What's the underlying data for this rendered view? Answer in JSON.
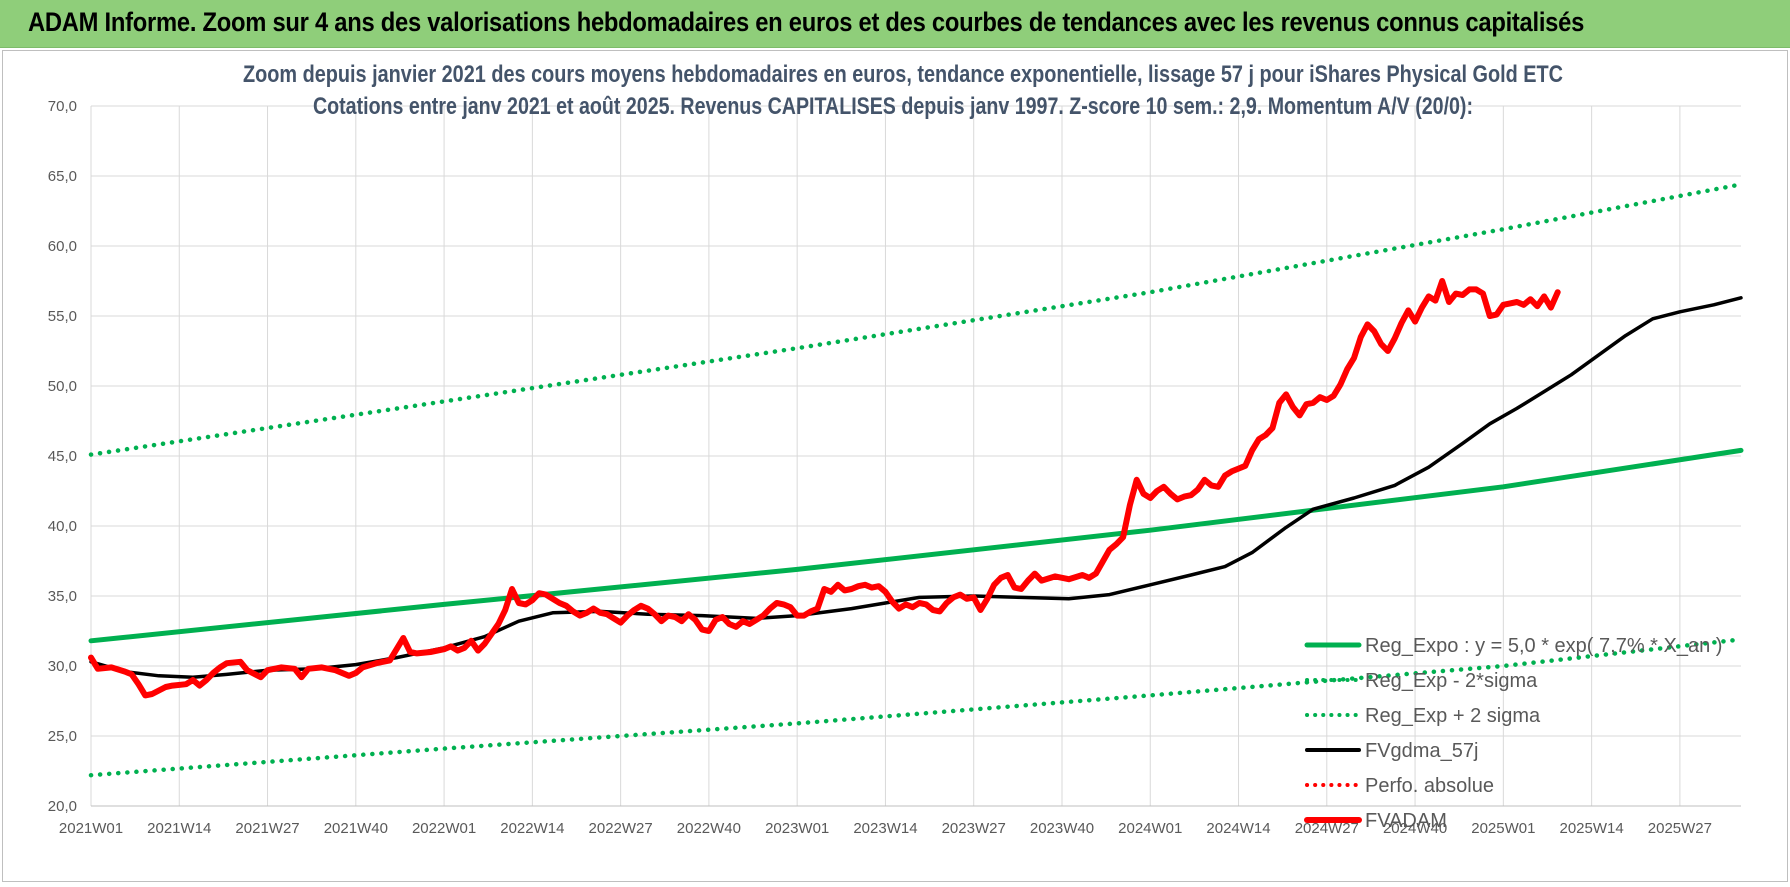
{
  "banner": {
    "title": "ADAM Informe. Zoom sur 4 ans des valorisations hebdomadaires en euros et des courbes de tendances avec les revenus connus capitalisés"
  },
  "chart_data": {
    "type": "line",
    "title": "Zoom depuis janvier 2021 des cours moyens hebdomadaires en euros, tendance exponentielle, lissage 57 j pour iShares Physical Gold ETC",
    "subtitle": "Cotations entre janv 2021 et août 2025. Revenus CAPITALISES depuis janv 1997. Z-score 10 sem.: 2,9. Momentum A/V (20/0):",
    "ylim": [
      20,
      70
    ],
    "y_ticks": [
      "70,0",
      "65,0",
      "60,0",
      "55,0",
      "50,0",
      "45,0",
      "40,0",
      "35,0",
      "30,0",
      "25,0",
      "20,0"
    ],
    "x_ticks": [
      "2021W01",
      "2021W14",
      "2021W27",
      "2021W40",
      "2022W01",
      "2022W14",
      "2022W27",
      "2022W40",
      "2023W01",
      "2023W14",
      "2023W27",
      "2023W40",
      "2024W01",
      "2024W14",
      "2024W27",
      "2024W40",
      "2025W01",
      "2025W14",
      "2025W27"
    ],
    "x_range_weeks": [
      0,
      243
    ],
    "grid": true,
    "legend_position": "bottom-right",
    "colors": {
      "trend": "#00b050",
      "fvadam": "#ff0000",
      "fvgdma": "#000000",
      "perfo": "#ff0000"
    },
    "series": [
      {
        "name": "Reg_Expo : y = 5,0 * exp( 7,7% *  X_an )",
        "style": "solid",
        "color": "#00b050",
        "points": [
          [
            0,
            31.8
          ],
          [
            52,
            34.4
          ],
          [
            104,
            36.9
          ],
          [
            156,
            39.7
          ],
          [
            208,
            42.8
          ],
          [
            243,
            45.4
          ]
        ]
      },
      {
        "name": "Reg_Exp - 2*sigma",
        "style": "dotted",
        "color": "#00b050",
        "points": [
          [
            0,
            22.2
          ],
          [
            52,
            24.1
          ],
          [
            104,
            25.9
          ],
          [
            156,
            27.9
          ],
          [
            208,
            30.0
          ],
          [
            243,
            31.9
          ]
        ]
      },
      {
        "name": "Reg_Exp + 2 sigma",
        "style": "dotted",
        "color": "#00b050",
        "points": [
          [
            0,
            45.1
          ],
          [
            52,
            48.9
          ],
          [
            104,
            52.7
          ],
          [
            156,
            56.7
          ],
          [
            208,
            61.2
          ],
          [
            243,
            64.4
          ]
        ]
      },
      {
        "name": "FVgdma_57j",
        "style": "solid",
        "color": "#000000",
        "points": [
          [
            0,
            30.3
          ],
          [
            5,
            29.6
          ],
          [
            10,
            29.3
          ],
          [
            15,
            29.2
          ],
          [
            20,
            29.4
          ],
          [
            26,
            29.7
          ],
          [
            33,
            29.8
          ],
          [
            39,
            30.1
          ],
          [
            45,
            30.6
          ],
          [
            52,
            31.3
          ],
          [
            58,
            32.1
          ],
          [
            63,
            33.2
          ],
          [
            68,
            33.8
          ],
          [
            75,
            33.9
          ],
          [
            82,
            33.7
          ],
          [
            90,
            33.6
          ],
          [
            98,
            33.4
          ],
          [
            104,
            33.6
          ],
          [
            112,
            34.1
          ],
          [
            117,
            34.5
          ],
          [
            122,
            34.9
          ],
          [
            130,
            35.0
          ],
          [
            137,
            34.9
          ],
          [
            144,
            34.8
          ],
          [
            150,
            35.1
          ],
          [
            156,
            35.8
          ],
          [
            162,
            36.5
          ],
          [
            167,
            37.1
          ],
          [
            171,
            38.1
          ],
          [
            176,
            39.9
          ],
          [
            180,
            41.2
          ],
          [
            186,
            42.0
          ],
          [
            192,
            42.9
          ],
          [
            197,
            44.2
          ],
          [
            202,
            45.9
          ],
          [
            206,
            47.3
          ],
          [
            210,
            48.4
          ],
          [
            214,
            49.6
          ],
          [
            218,
            50.8
          ],
          [
            222,
            52.2
          ],
          [
            226,
            53.6
          ],
          [
            230,
            54.8
          ],
          [
            234,
            55.3
          ],
          [
            239,
            55.8
          ],
          [
            243,
            56.3
          ]
        ]
      },
      {
        "name": "Perfo. absolue",
        "style": "dotted",
        "color": "#ff0000",
        "points": []
      },
      {
        "name": "FVADAM",
        "style": "solid",
        "color": "#ff0000",
        "points": [
          [
            0,
            30.6
          ],
          [
            1,
            29.8
          ],
          [
            3,
            29.9
          ],
          [
            5,
            29.6
          ],
          [
            6,
            29.4
          ],
          [
            7,
            28.7
          ],
          [
            8,
            27.9
          ],
          [
            9,
            28.0
          ],
          [
            11,
            28.5
          ],
          [
            12,
            28.6
          ],
          [
            14,
            28.7
          ],
          [
            15,
            29.0
          ],
          [
            16,
            28.6
          ],
          [
            17,
            29.0
          ],
          [
            18,
            29.5
          ],
          [
            19,
            29.9
          ],
          [
            20,
            30.2
          ],
          [
            22,
            30.3
          ],
          [
            23,
            29.7
          ],
          [
            25,
            29.2
          ],
          [
            26,
            29.7
          ],
          [
            28,
            29.9
          ],
          [
            30,
            29.8
          ],
          [
            31,
            29.2
          ],
          [
            32,
            29.8
          ],
          [
            34,
            29.9
          ],
          [
            36,
            29.7
          ],
          [
            38,
            29.3
          ],
          [
            39,
            29.5
          ],
          [
            40,
            29.9
          ],
          [
            42,
            30.2
          ],
          [
            44,
            30.4
          ],
          [
            46,
            32.0
          ],
          [
            47,
            31.0
          ],
          [
            48,
            30.9
          ],
          [
            50,
            31.0
          ],
          [
            52,
            31.2
          ],
          [
            53,
            31.4
          ],
          [
            54,
            31.1
          ],
          [
            55,
            31.3
          ],
          [
            56,
            31.8
          ],
          [
            57,
            31.1
          ],
          [
            58,
            31.6
          ],
          [
            60,
            33.0
          ],
          [
            61,
            34.0
          ],
          [
            62,
            35.5
          ],
          [
            63,
            34.5
          ],
          [
            64,
            34.4
          ],
          [
            65,
            34.7
          ],
          [
            66,
            35.2
          ],
          [
            67,
            35.1
          ],
          [
            68,
            34.8
          ],
          [
            69,
            34.5
          ],
          [
            70,
            34.3
          ],
          [
            71,
            33.9
          ],
          [
            72,
            33.6
          ],
          [
            73,
            33.8
          ],
          [
            74,
            34.1
          ],
          [
            75,
            33.8
          ],
          [
            76,
            33.7
          ],
          [
            77,
            33.4
          ],
          [
            78,
            33.1
          ],
          [
            79,
            33.6
          ],
          [
            80,
            34.0
          ],
          [
            81,
            34.3
          ],
          [
            82,
            34.1
          ],
          [
            83,
            33.7
          ],
          [
            84,
            33.2
          ],
          [
            85,
            33.6
          ],
          [
            86,
            33.5
          ],
          [
            87,
            33.2
          ],
          [
            88,
            33.7
          ],
          [
            89,
            33.3
          ],
          [
            90,
            32.6
          ],
          [
            91,
            32.5
          ],
          [
            92,
            33.3
          ],
          [
            93,
            33.5
          ],
          [
            94,
            33.0
          ],
          [
            95,
            32.8
          ],
          [
            96,
            33.2
          ],
          [
            97,
            33.0
          ],
          [
            98,
            33.3
          ],
          [
            99,
            33.6
          ],
          [
            100,
            34.1
          ],
          [
            101,
            34.5
          ],
          [
            102,
            34.4
          ],
          [
            103,
            34.2
          ],
          [
            104,
            33.6
          ],
          [
            105,
            33.6
          ],
          [
            106,
            33.9
          ],
          [
            107,
            34.1
          ],
          [
            108,
            35.5
          ],
          [
            109,
            35.3
          ],
          [
            110,
            35.8
          ],
          [
            111,
            35.4
          ],
          [
            112,
            35.5
          ],
          [
            113,
            35.7
          ],
          [
            114,
            35.8
          ],
          [
            115,
            35.6
          ],
          [
            116,
            35.7
          ],
          [
            117,
            35.3
          ],
          [
            118,
            34.6
          ],
          [
            119,
            34.1
          ],
          [
            120,
            34.4
          ],
          [
            121,
            34.2
          ],
          [
            122,
            34.5
          ],
          [
            123,
            34.4
          ],
          [
            124,
            34.0
          ],
          [
            125,
            33.9
          ],
          [
            126,
            34.5
          ],
          [
            127,
            34.9
          ],
          [
            128,
            35.1
          ],
          [
            129,
            34.8
          ],
          [
            130,
            34.9
          ],
          [
            131,
            34.0
          ],
          [
            132,
            34.8
          ],
          [
            133,
            35.8
          ],
          [
            134,
            36.3
          ],
          [
            135,
            36.5
          ],
          [
            136,
            35.6
          ],
          [
            137,
            35.5
          ],
          [
            138,
            36.1
          ],
          [
            139,
            36.6
          ],
          [
            140,
            36.1
          ],
          [
            142,
            36.4
          ],
          [
            144,
            36.2
          ],
          [
            146,
            36.5
          ],
          [
            147,
            36.3
          ],
          [
            148,
            36.6
          ],
          [
            150,
            38.3
          ],
          [
            151,
            38.7
          ],
          [
            152,
            39.2
          ],
          [
            153,
            41.5
          ],
          [
            154,
            43.3
          ],
          [
            155,
            42.3
          ],
          [
            156,
            42.0
          ],
          [
            157,
            42.5
          ],
          [
            158,
            42.8
          ],
          [
            159,
            42.3
          ],
          [
            160,
            41.9
          ],
          [
            161,
            42.1
          ],
          [
            162,
            42.2
          ],
          [
            163,
            42.6
          ],
          [
            164,
            43.3
          ],
          [
            165,
            42.9
          ],
          [
            166,
            42.8
          ],
          [
            167,
            43.6
          ],
          [
            168,
            43.9
          ],
          [
            169,
            44.1
          ],
          [
            170,
            44.3
          ],
          [
            171,
            45.4
          ],
          [
            172,
            46.2
          ],
          [
            173,
            46.5
          ],
          [
            174,
            47.0
          ],
          [
            175,
            48.8
          ],
          [
            176,
            49.4
          ],
          [
            177,
            48.5
          ],
          [
            178,
            47.9
          ],
          [
            179,
            48.7
          ],
          [
            180,
            48.8
          ],
          [
            181,
            49.2
          ],
          [
            182,
            49.0
          ],
          [
            183,
            49.3
          ],
          [
            184,
            50.1
          ],
          [
            185,
            51.2
          ],
          [
            186,
            52.0
          ],
          [
            187,
            53.5
          ],
          [
            188,
            54.4
          ],
          [
            189,
            53.9
          ],
          [
            190,
            53.0
          ],
          [
            191,
            52.5
          ],
          [
            192,
            53.4
          ],
          [
            193,
            54.5
          ],
          [
            194,
            55.4
          ],
          [
            195,
            54.6
          ],
          [
            196,
            55.6
          ],
          [
            197,
            56.4
          ],
          [
            198,
            56.1
          ],
          [
            199,
            57.5
          ],
          [
            200,
            56.0
          ],
          [
            201,
            56.6
          ],
          [
            202,
            56.5
          ],
          [
            203,
            56.9
          ],
          [
            204,
            56.9
          ],
          [
            205,
            56.6
          ],
          [
            206,
            55.0
          ],
          [
            207,
            55.1
          ],
          [
            208,
            55.8
          ],
          [
            209,
            55.9
          ],
          [
            210,
            56.0
          ],
          [
            211,
            55.8
          ],
          [
            212,
            56.2
          ],
          [
            213,
            55.7
          ],
          [
            214,
            56.4
          ],
          [
            215,
            55.6
          ],
          [
            216,
            56.7
          ]
        ]
      }
    ]
  }
}
